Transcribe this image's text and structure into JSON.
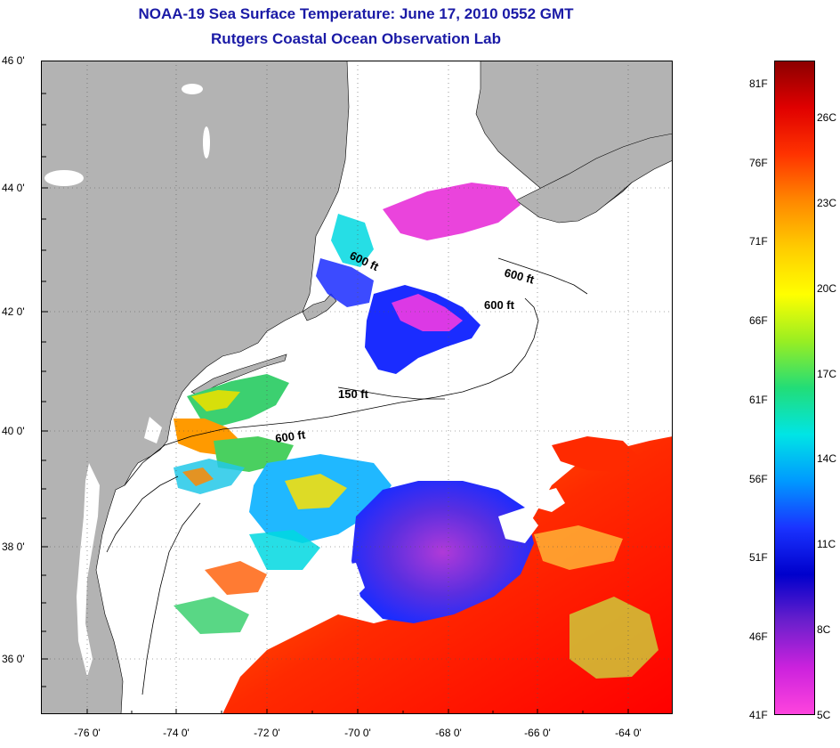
{
  "title": {
    "line1": "NOAA-19 Sea Surface Temperature:  June 17, 2010 0552 GMT",
    "line2": "Rutgers Coastal Ocean Observation Lab"
  },
  "latitude_labels": [
    "46 0'",
    "44 0'",
    "42 0'",
    "40 0'",
    "38 0'",
    "36 0'"
  ],
  "longitude_labels": [
    "-76 0'",
    "-74 0'",
    "-72 0'",
    "-70 0'",
    "-68 0'",
    "-66 0'",
    "-64 0'"
  ],
  "contour_labels": [
    "600 ft",
    "600 ft",
    "600 ft",
    "150 ft",
    "600 ft"
  ],
  "colorbar": {
    "fahrenheit": [
      "81F",
      "76F",
      "71F",
      "66F",
      "61F",
      "56F",
      "51F",
      "46F",
      "41F"
    ],
    "celsius": [
      "26C",
      "23C",
      "20C",
      "17C",
      "14C",
      "11C",
      "8C",
      "5C"
    ],
    "colors": [
      "#8b0000",
      "#e00000",
      "#ff3300",
      "#ff8800",
      "#ffcc00",
      "#ffff00",
      "#99ee22",
      "#22dd77",
      "#00e5e5",
      "#0099ff",
      "#1a33ff",
      "#0000cc",
      "#6a1fcc",
      "#cc22dd",
      "#ff44dd"
    ]
  },
  "map": {
    "land_color": "#b3b3b3",
    "ocean_color": "#ffffff",
    "lat_range": [
      35,
      46
    ],
    "lon_range": [
      -77,
      -63
    ]
  }
}
